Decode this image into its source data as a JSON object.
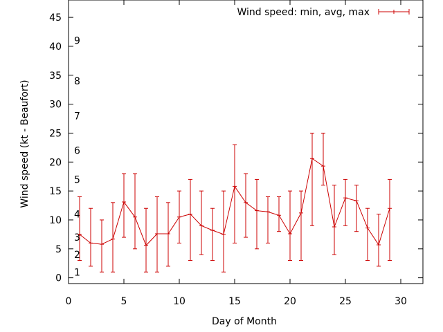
{
  "chart_data": {
    "type": "line",
    "title": "",
    "xlabel": "Day of Month",
    "ylabel": "Wind speed (kt - Beaufort)",
    "xlim": [
      0,
      32
    ],
    "ylim": [
      -1,
      48
    ],
    "x_ticks": [
      0,
      5,
      10,
      15,
      20,
      25,
      30
    ],
    "y_ticks": [
      0,
      5,
      10,
      15,
      20,
      25,
      30,
      35,
      40,
      45
    ],
    "beaufort_labels": [
      {
        "label": "1",
        "y": 1
      },
      {
        "label": "2",
        "y": 4
      },
      {
        "label": "3",
        "y": 7
      },
      {
        "label": "4",
        "y": 11
      },
      {
        "label": "5",
        "y": 17
      },
      {
        "label": "6",
        "y": 22
      },
      {
        "label": "7",
        "y": 28
      },
      {
        "label": "8",
        "y": 34
      },
      {
        "label": "9",
        "y": 41
      }
    ],
    "legend_position": "top-right",
    "grid": false,
    "series": [
      {
        "name": "Wind speed: min, avg, max",
        "color": "#cc0000",
        "points": [
          {
            "x": 1,
            "avg": 7.5,
            "min": 3,
            "max": 14
          },
          {
            "x": 2,
            "avg": 6.0,
            "min": 2,
            "max": 12
          },
          {
            "x": 3,
            "avg": 5.8,
            "min": 1,
            "max": 10
          },
          {
            "x": 4,
            "avg": 6.7,
            "min": 1,
            "max": 13
          },
          {
            "x": 5,
            "avg": 13.1,
            "min": 7,
            "max": 18
          },
          {
            "x": 6,
            "avg": 10.5,
            "min": 5,
            "max": 18
          },
          {
            "x": 7,
            "avg": 5.6,
            "min": 1,
            "max": 12
          },
          {
            "x": 8,
            "avg": 7.6,
            "min": 1,
            "max": 14
          },
          {
            "x": 9,
            "avg": 7.6,
            "min": 2,
            "max": 13
          },
          {
            "x": 10,
            "avg": 10.5,
            "min": 6,
            "max": 15
          },
          {
            "x": 11,
            "avg": 11.0,
            "min": 3,
            "max": 17
          },
          {
            "x": 12,
            "avg": 9.0,
            "min": 4,
            "max": 15
          },
          {
            "x": 13,
            "avg": 8.2,
            "min": 3,
            "max": 12
          },
          {
            "x": 14,
            "avg": 7.5,
            "min": 1,
            "max": 15
          },
          {
            "x": 15,
            "avg": 15.8,
            "min": 6,
            "max": 23
          },
          {
            "x": 16,
            "avg": 13.0,
            "min": 7,
            "max": 18
          },
          {
            "x": 17,
            "avg": 11.6,
            "min": 5,
            "max": 17
          },
          {
            "x": 18,
            "avg": 11.4,
            "min": 6,
            "max": 14
          },
          {
            "x": 19,
            "avg": 10.8,
            "min": 8,
            "max": 14
          },
          {
            "x": 20,
            "avg": 7.6,
            "min": 3,
            "max": 15
          },
          {
            "x": 21,
            "avg": 11.2,
            "min": 3,
            "max": 15
          },
          {
            "x": 22,
            "avg": 20.6,
            "min": 9,
            "max": 25
          },
          {
            "x": 23,
            "avg": 19.3,
            "min": 16,
            "max": 25
          },
          {
            "x": 24,
            "avg": 8.8,
            "min": 4,
            "max": 16
          },
          {
            "x": 25,
            "avg": 13.8,
            "min": 9,
            "max": 17
          },
          {
            "x": 26,
            "avg": 13.3,
            "min": 8,
            "max": 16
          },
          {
            "x": 27,
            "avg": 8.6,
            "min": 3,
            "max": 12
          },
          {
            "x": 28,
            "avg": 5.7,
            "min": 2,
            "max": 11
          },
          {
            "x": 29,
            "avg": 12.0,
            "min": 3,
            "max": 17
          }
        ]
      }
    ]
  }
}
